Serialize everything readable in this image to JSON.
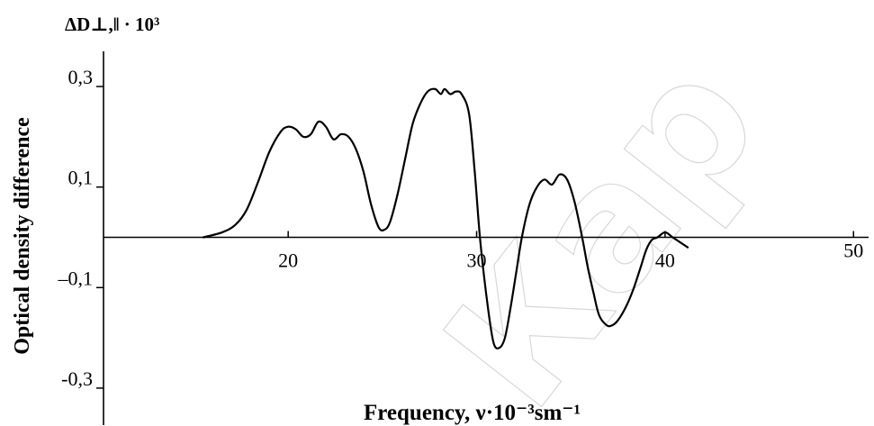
{
  "chart_data": {
    "type": "line",
    "title": "",
    "xlabel": "Frequency, ν·10⁻³sm⁻¹",
    "ylabel": "Optical density difference",
    "ylabel_top": "ΔD⊥,‖ · 10³",
    "xlim": [
      10.2,
      50.8
    ],
    "ylim": [
      -0.37,
      0.37
    ],
    "x_ticks": [
      20,
      30,
      40,
      50
    ],
    "x_tick_labels": [
      "20",
      "30",
      "40",
      "50"
    ],
    "y_ticks": [
      0.3,
      0.1,
      -0.1,
      -0.3
    ],
    "y_tick_labels": [
      "0,3",
      "0,1",
      "–0,1",
      "-0,3"
    ],
    "grid": false,
    "line_color": "#000000",
    "series": [
      {
        "x": [
          15.5,
          16.5,
          17.2,
          17.8,
          18.4,
          19.0,
          19.6,
          20.0,
          20.4,
          20.8,
          21.2,
          21.6,
          22.0,
          22.4,
          22.8,
          23.2,
          23.6,
          24.0,
          24.4,
          24.8,
          25.1,
          25.4,
          25.8,
          26.2,
          26.6,
          27.0,
          27.4,
          27.8,
          28.1,
          28.3,
          28.6,
          28.9,
          29.2,
          29.6,
          29.9,
          30.2,
          30.6,
          30.9,
          31.2,
          31.5,
          31.8,
          32.1,
          32.4,
          32.8,
          33.2,
          33.6,
          34.0,
          34.4,
          34.8,
          35.2,
          35.6,
          35.9,
          36.2,
          36.5,
          36.9,
          37.2,
          37.5,
          37.9,
          38.3,
          38.7,
          39.0,
          39.3,
          39.6,
          40.0,
          40.4,
          40.8,
          41.2
        ],
        "y": [
          0.0,
          0.01,
          0.025,
          0.055,
          0.11,
          0.17,
          0.21,
          0.22,
          0.215,
          0.2,
          0.205,
          0.23,
          0.22,
          0.195,
          0.205,
          0.2,
          0.175,
          0.13,
          0.065,
          0.02,
          0.015,
          0.03,
          0.085,
          0.155,
          0.225,
          0.265,
          0.29,
          0.295,
          0.285,
          0.295,
          0.285,
          0.29,
          0.285,
          0.245,
          0.13,
          -0.01,
          -0.14,
          -0.21,
          -0.22,
          -0.2,
          -0.14,
          -0.07,
          0.0,
          0.065,
          0.1,
          0.115,
          0.105,
          0.125,
          0.115,
          0.07,
          0.0,
          -0.06,
          -0.11,
          -0.155,
          -0.175,
          -0.175,
          -0.165,
          -0.14,
          -0.105,
          -0.06,
          -0.025,
          -0.005,
          0.0,
          0.01,
          0.0,
          -0.01,
          -0.02
        ]
      }
    ]
  },
  "watermark": {
    "text": "Кар",
    "color": "#b8b8b8"
  }
}
